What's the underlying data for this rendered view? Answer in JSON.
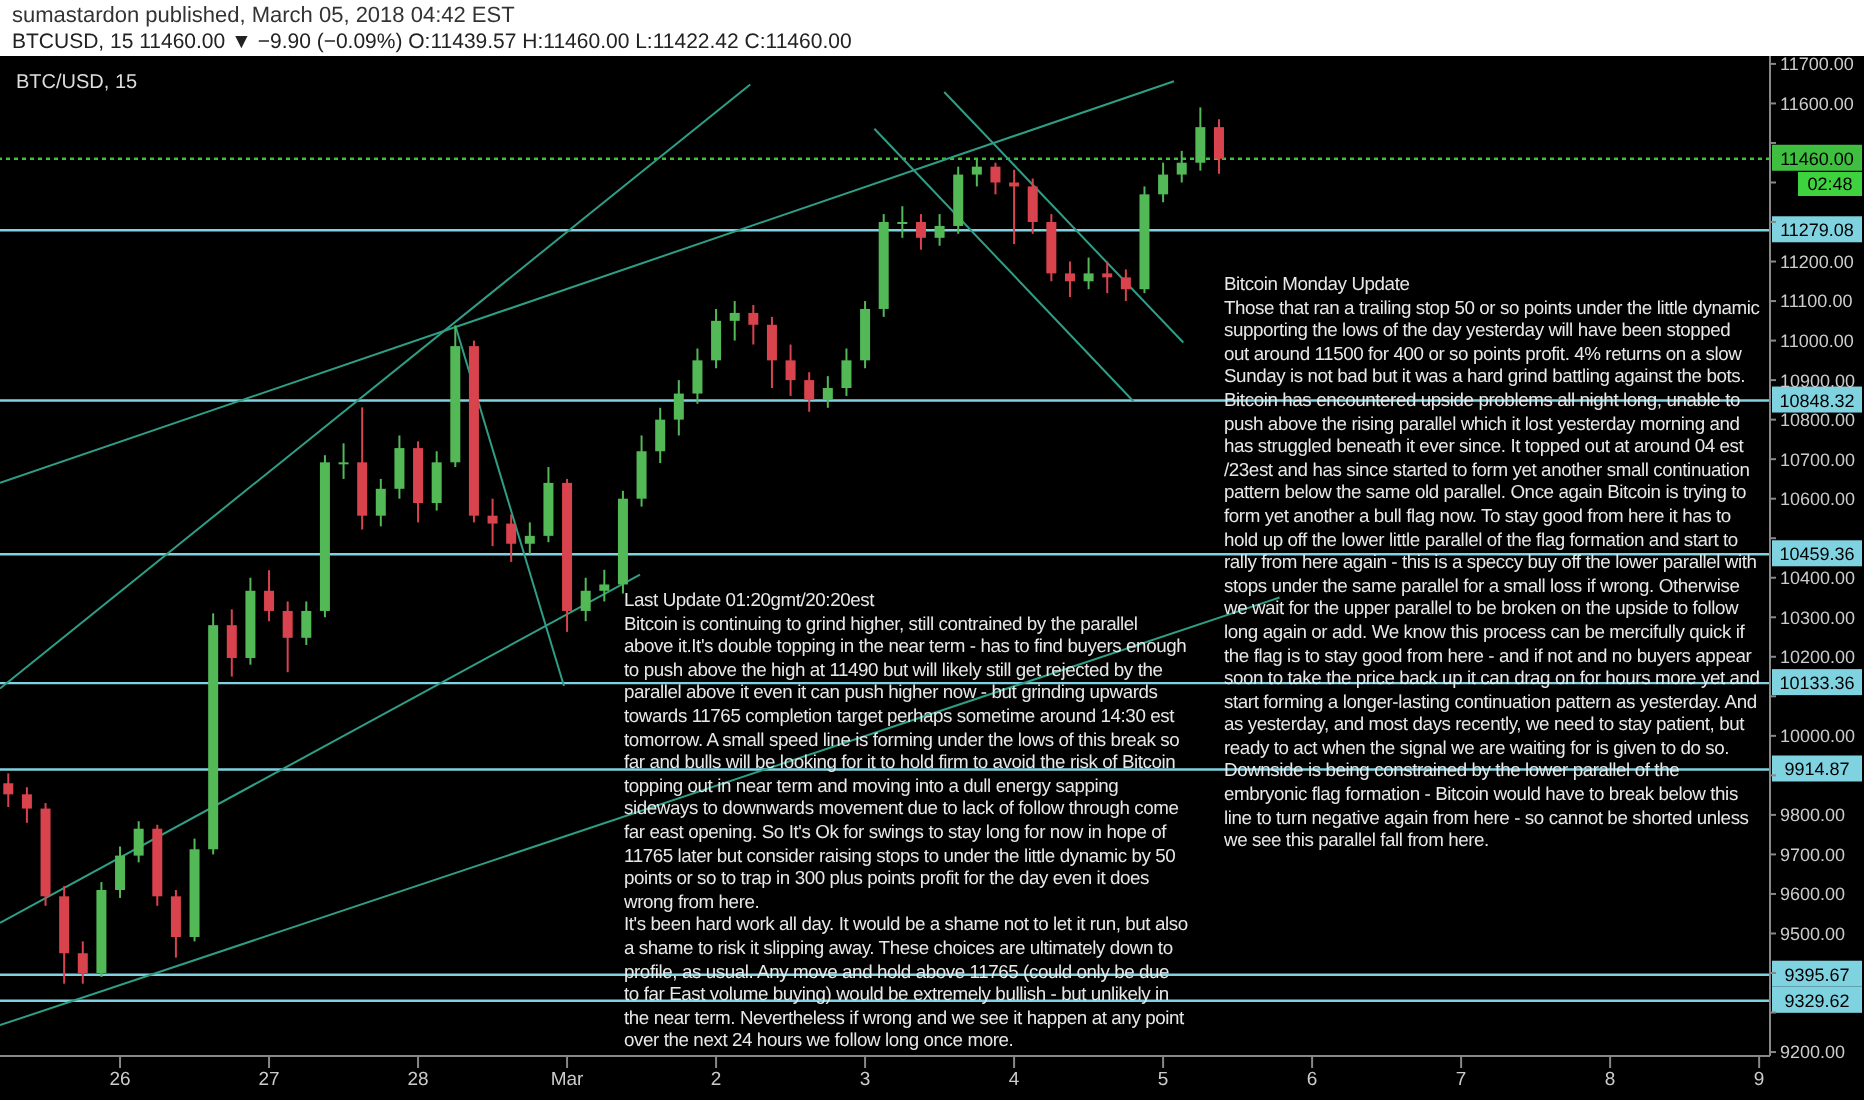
{
  "chart_data": {
    "type": "candlestick",
    "title": "sumastardon published, March 05, 2018 04:42 EST",
    "subtitle": "BTCUSD, 15  11460.00 ▼ −9.90 (−0.09%) O:11439.57 H:11460.00 L:11422.42 C:11460.00",
    "annotations": [
      "BTC/USD, 15",
      "02:48",
      "Last Update 01:20gmt/20:20est\nBitcoin is continuing to grind higher, still contrained by the parallel above it.It's double topping in the near term - has to find buyers enough to push above the high at 11490 but will likely still get rejected by the parallel above it even it can push higher now - but grinding upwards towards 11765 completion target perhaps sometime around 14:30 est tomorrow. A small speed line is forming under the lows of this break so far and bulls will be looking for it to hold firm to avoid the risk of Bitcoin topping out in near term and moving into a dull energy sapping sideways to downwards movement due to lack of follow through come far east opening. So It's Ok for swings to stay long for now in hope of 11765 later but consider raising stops to under the little dynamic by 50 points or so to trap in 300 plus points profit for the day even it does wrong from here.\nIt's been hard work all day. It would be a shame not to let it run, but also a shame to risk it slipping away. These choices are ultimately down to profile, as usual. Any move and hold above 11765 (could only be due to far East volume buying) would be extremely bullish - but unlikely in the near term. Nevertheless if wrong and we see it happen at any point over the next 24 hours we follow long once more.",
      "Bitcoin Monday Update\nThose that ran a trailing stop 50 or so points under the little dynamic supporting the lows of the day yesterday will have been stopped out around 11500 for 400 or so points profit. 4% returns on a slow Sunday is not bad but it was a hard grind battling against the bots. Bitcoin has encountered upside problems all night long, unable to push above the rising parallel which it lost yesterday morning and has struggled beneath it ever since. It topped out at around 04 est /23est and has since started to form yet another small continuation pattern below the same old parallel. Once again Bitcoin is trying to form yet another a bull flag now. To stay good from here it has to hold up off the lower little parallel of the flag formation and start to rally from here again - this is a speccy buy off the lower parallel with stops under the same parallel for a small loss if wrong. Otherwise we wait for the upper parallel to be broken on the upside to follow long again or add. We know this process can be mercifully quick if the flag is to stay good from here - and if not and no buyers appear soon to take the price back up it can drag on for hours more yet and start forming a longer-lasting continuation pattern as yesterday. And as yesterday, and most days recently, we need to stay patient, but ready to act when the signal we are waiting for is given to do so.\nDownside is being constrained by the lower parallel of the embryonic flag formation - Bitcoin would have to break below this line to turn negative again from here - so cannot be shorted unless we see this parallel fall from here."
    ],
    "x": [
      "2018-02-25T06:00",
      "2018-02-25T09:00",
      "2018-02-25T12:00",
      "2018-02-25T15:00",
      "2018-02-25T18:00",
      "2018-02-25T21:00",
      "2018-02-26T00:00",
      "2018-02-26T03:00",
      "2018-02-26T06:00",
      "2018-02-26T09:00",
      "2018-02-26T12:00",
      "2018-02-26T15:00",
      "2018-02-26T18:00",
      "2018-02-26T21:00",
      "2018-02-27T00:00",
      "2018-02-27T03:00",
      "2018-02-27T06:00",
      "2018-02-27T09:00",
      "2018-02-27T12:00",
      "2018-02-27T15:00",
      "2018-02-27T18:00",
      "2018-02-27T21:00",
      "2018-02-28T00:00",
      "2018-02-28T03:00",
      "2018-02-28T06:00",
      "2018-02-28T09:00",
      "2018-02-28T12:00",
      "2018-02-28T15:00",
      "2018-02-28T18:00",
      "2018-02-28T21:00",
      "2018-03-01T00:00",
      "2018-03-01T03:00",
      "2018-03-01T06:00",
      "2018-03-01T09:00",
      "2018-03-01T12:00",
      "2018-03-01T15:00",
      "2018-03-01T18:00",
      "2018-03-01T21:00",
      "2018-03-02T00:00",
      "2018-03-02T03:00",
      "2018-03-02T06:00",
      "2018-03-02T09:00",
      "2018-03-02T12:00",
      "2018-03-02T15:00",
      "2018-03-02T18:00",
      "2018-03-02T21:00",
      "2018-03-03T00:00",
      "2018-03-03T03:00",
      "2018-03-03T06:00",
      "2018-03-03T09:00",
      "2018-03-03T12:00",
      "2018-03-03T15:00",
      "2018-03-03T18:00",
      "2018-03-03T21:00",
      "2018-03-04T00:00",
      "2018-03-04T03:00",
      "2018-03-04T06:00",
      "2018-03-04T09:00",
      "2018-03-04T12:00",
      "2018-03-04T15:00",
      "2018-03-04T18:00",
      "2018-03-04T21:00",
      "2018-03-05T00:00",
      "2018-03-05T03:00",
      "2018-03-05T06:00",
      "2018-03-05T09:00"
    ],
    "ohlc": [
      [
        9880,
        9905,
        9820,
        9852
      ],
      [
        9852,
        9870,
        9780,
        9816
      ],
      [
        9816,
        9830,
        9570,
        9594
      ],
      [
        9594,
        9620,
        9373,
        9450
      ],
      [
        9450,
        9480,
        9373,
        9400
      ],
      [
        9400,
        9630,
        9390,
        9610
      ],
      [
        9610,
        9720,
        9590,
        9697
      ],
      [
        9697,
        9784,
        9680,
        9765
      ],
      [
        9765,
        9775,
        9570,
        9594
      ],
      [
        9594,
        9610,
        9439,
        9491
      ],
      [
        9491,
        9740,
        9480,
        9713
      ],
      [
        9713,
        10310,
        9700,
        10280
      ],
      [
        10280,
        10320,
        10150,
        10197
      ],
      [
        10197,
        10400,
        10180,
        10367
      ],
      [
        10367,
        10419,
        10290,
        10316
      ],
      [
        10316,
        10340,
        10161,
        10248
      ],
      [
        10248,
        10340,
        10230,
        10316
      ],
      [
        10316,
        10710,
        10300,
        10692
      ],
      [
        10692,
        10740,
        10650,
        10692
      ],
      [
        10692,
        10831,
        10522,
        10557
      ],
      [
        10557,
        10650,
        10530,
        10625
      ],
      [
        10625,
        10760,
        10600,
        10728
      ],
      [
        10728,
        10745,
        10540,
        10589
      ],
      [
        10589,
        10720,
        10570,
        10692
      ],
      [
        10692,
        11038,
        10680,
        10986
      ],
      [
        10986,
        11000,
        10540,
        10557
      ],
      [
        10557,
        10600,
        10480,
        10537
      ],
      [
        10537,
        10560,
        10440,
        10486
      ],
      [
        10486,
        10540,
        10460,
        10506
      ],
      [
        10506,
        10680,
        10490,
        10640
      ],
      [
        10640,
        10650,
        10263,
        10316
      ],
      [
        10316,
        10400,
        10290,
        10367
      ],
      [
        10367,
        10420,
        10340,
        10383
      ],
      [
        10383,
        10620,
        10360,
        10600
      ],
      [
        10600,
        10760,
        10580,
        10720
      ],
      [
        10720,
        10830,
        10690,
        10800
      ],
      [
        10800,
        10900,
        10760,
        10866
      ],
      [
        10866,
        10980,
        10840,
        10950
      ],
      [
        10950,
        11080,
        10930,
        11050
      ],
      [
        11050,
        11100,
        11000,
        11070
      ],
      [
        11070,
        11090,
        10990,
        11040
      ],
      [
        11040,
        11060,
        10880,
        10950
      ],
      [
        10950,
        10990,
        10860,
        10900
      ],
      [
        10900,
        10920,
        10820,
        10850
      ],
      [
        10850,
        10910,
        10830,
        10880
      ],
      [
        10880,
        10980,
        10860,
        10950
      ],
      [
        10950,
        11100,
        10930,
        11080
      ],
      [
        11080,
        11320,
        11060,
        11300
      ],
      [
        11300,
        11340,
        11260,
        11300
      ],
      [
        11300,
        11320,
        11230,
        11260
      ],
      [
        11260,
        11320,
        11240,
        11290
      ],
      [
        11290,
        11440,
        11270,
        11420
      ],
      [
        11420,
        11458,
        11390,
        11440
      ],
      [
        11440,
        11450,
        11370,
        11400
      ],
      [
        11400,
        11432,
        11244,
        11390
      ],
      [
        11390,
        11410,
        11270,
        11300
      ],
      [
        11300,
        11320,
        11150,
        11170
      ],
      [
        11170,
        11200,
        11110,
        11150
      ],
      [
        11150,
        11210,
        11130,
        11170
      ],
      [
        11170,
        11200,
        11120,
        11160
      ],
      [
        11160,
        11180,
        11100,
        11130
      ],
      [
        11130,
        11390,
        11120,
        11370
      ],
      [
        11370,
        11450,
        11350,
        11420
      ],
      [
        11420,
        11480,
        11400,
        11450
      ],
      [
        11450,
        11590,
        11430,
        11540
      ],
      [
        11540,
        11560,
        11422,
        11460
      ]
    ],
    "colors": [
      "#d9434d",
      "#d9434d",
      "#d9434d",
      "#d9434d",
      "#d9434d",
      "#53b957",
      "#53b957",
      "#53b957",
      "#d9434d",
      "#d9434d",
      "#53b957",
      "#53b957",
      "#d9434d",
      "#53b957",
      "#d9434d",
      "#d9434d",
      "#53b957",
      "#53b957",
      "#53b957",
      "#d9434d",
      "#53b957",
      "#53b957",
      "#d9434d",
      "#53b957",
      "#53b957",
      "#d9434d",
      "#d9434d",
      "#d9434d",
      "#53b957",
      "#53b957",
      "#d9434d",
      "#53b957",
      "#53b957",
      "#53b957",
      "#53b957",
      "#53b957",
      "#53b957",
      "#53b957",
      "#53b957",
      "#53b957",
      "#d9434d",
      "#d9434d",
      "#d9434d",
      "#d9434d",
      "#53b957",
      "#53b957",
      "#53b957",
      "#53b957",
      "#53b957",
      "#d9434d",
      "#53b957",
      "#53b957",
      "#53b957",
      "#d9434d",
      "#d9434d",
      "#d9434d",
      "#d9434d",
      "#d9434d",
      "#53b957",
      "#d9434d",
      "#d9434d",
      "#53b957",
      "#53b957",
      "#53b957",
      "#53b957",
      "#d9434d"
    ],
    "series": [
      {
        "type": "line",
        "color": "#2f9e86",
        "x": [
          "2018-02-25T04:40",
          "2018-03-05T01:45"
        ],
        "values": [
          10640,
          11656
        ]
      },
      {
        "type": "line",
        "color": "#2f9e86",
        "x": [
          "2018-02-25T04:40",
          "2018-03-02T05:30"
        ],
        "values": [
          10120,
          11648
        ]
      },
      {
        "type": "line",
        "color": "#2f9e86",
        "x": [
          "2018-02-25T04:40",
          "2018-03-05T18:45"
        ],
        "values": [
          9268,
          10350
        ]
      },
      {
        "type": "line",
        "color": "#2f9e86",
        "x": [
          "2018-02-25T04:40",
          "2018-03-01T11:45"
        ],
        "values": [
          9527,
          10408
        ]
      },
      {
        "type": "line",
        "color": "#2f9e86",
        "x": [
          "2018-02-28T06:00",
          "2018-02-28T23:30"
        ],
        "values": [
          11038,
          10126
        ]
      },
      {
        "type": "line",
        "color": "#2f9e86",
        "x": [
          "2018-03-03T01:30",
          "2018-03-04T19:15"
        ],
        "values": [
          11536,
          10846
        ]
      },
      {
        "type": "line",
        "color": "#2f9e86",
        "x": [
          "2018-03-03T12:45",
          "2018-03-05T03:15"
        ],
        "values": [
          11629,
          10995
        ]
      }
    ],
    "ref_lines": [
      {
        "axis": "y",
        "value": 11460,
        "label": "11460.00",
        "color": "#3fbf3f",
        "line_style": "dotted"
      },
      {
        "axis": "y",
        "value": 11279.08,
        "label": "11279.08",
        "color": "#7fd3e0"
      },
      {
        "axis": "y",
        "value": 10848.32,
        "label": "10848.32",
        "color": "#7fd3e0"
      },
      {
        "axis": "y",
        "value": 10459.36,
        "label": "10459.36",
        "color": "#7fd3e0"
      },
      {
        "axis": "y",
        "value": 10133.36,
        "label": "10133.36",
        "color": "#7fd3e0"
      },
      {
        "axis": "y",
        "value": 9914.87,
        "label": "9914.87",
        "color": "#7fd3e0"
      },
      {
        "axis": "y",
        "value": 9395.67,
        "label": "9395.67",
        "color": "#7fd3e0"
      },
      {
        "axis": "y",
        "value": 9329.62,
        "label": "9329.62",
        "color": "#7fd3e0"
      }
    ],
    "xlim": [
      "2018-02-25T04:40",
      "2018-03-09T01:45"
    ],
    "xticks": [
      {
        "value": "2018-02-26",
        "label": "26"
      },
      {
        "value": "2018-02-27",
        "label": "27"
      },
      {
        "value": "2018-02-28",
        "label": "28"
      },
      {
        "value": "2018-03-01",
        "label": "Mar"
      },
      {
        "value": "2018-03-02",
        "label": "2"
      },
      {
        "value": "2018-03-03",
        "label": "3"
      },
      {
        "value": "2018-03-04",
        "label": "4"
      },
      {
        "value": "2018-03-05",
        "label": "5"
      },
      {
        "value": "2018-03-06",
        "label": "6"
      },
      {
        "value": "2018-03-07",
        "label": "7"
      },
      {
        "value": "2018-03-08",
        "label": "8"
      },
      {
        "value": "2018-03-09",
        "label": "9"
      }
    ],
    "ylim": [
      9190,
      11720
    ],
    "yticks": [
      {
        "value": 9200,
        "label": "9200.00"
      },
      {
        "value": 9300,
        "label": null
      },
      {
        "value": 9400,
        "label": null
      },
      {
        "value": 9500,
        "label": "9500.00"
      },
      {
        "value": 9600,
        "label": "9600.00"
      },
      {
        "value": 9700,
        "label": "9700.00"
      },
      {
        "value": 9800,
        "label": "9800.00"
      },
      {
        "value": 9900,
        "label": null
      },
      {
        "value": 10000,
        "label": "10000.00"
      },
      {
        "value": 10100,
        "label": null
      },
      {
        "value": 10200,
        "label": "10200.00"
      },
      {
        "value": 10300,
        "label": "10300.00"
      },
      {
        "value": 10400,
        "label": "10400.00"
      },
      {
        "value": 10500,
        "label": null
      },
      {
        "value": 10600,
        "label": "10600.00"
      },
      {
        "value": 10700,
        "label": "10700.00"
      },
      {
        "value": 10800,
        "label": "10800.00"
      },
      {
        "value": 10900,
        "label": "10900.00"
      },
      {
        "value": 11000,
        "label": "11000.00"
      },
      {
        "value": 11100,
        "label": "11100.00"
      },
      {
        "value": 11200,
        "label": "11200.00"
      },
      {
        "value": 11300,
        "label": null
      },
      {
        "value": 11400,
        "label": null
      },
      {
        "value": 11500,
        "label": null
      },
      {
        "value": 11600,
        "label": "11600.00"
      },
      {
        "value": 11700,
        "label": "11700.00"
      }
    ]
  }
}
